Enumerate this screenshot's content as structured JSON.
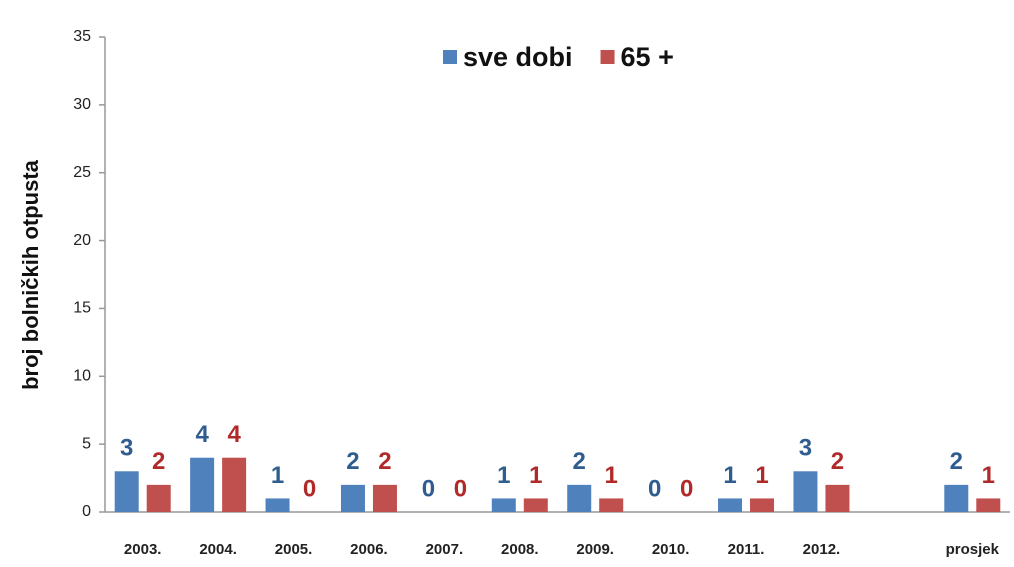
{
  "chart_data": {
    "type": "bar",
    "y_label": "broj bolničkih otpusta",
    "categories": [
      "2003.",
      "2004.",
      "2005.",
      "2006.",
      "2007.",
      "2008.",
      "2009.",
      "2010.",
      "2011.",
      "2012.",
      null,
      "prosjek"
    ],
    "series": [
      {
        "name": "sve dobi",
        "color": "#4f81bd",
        "label_color": "#2f5d8f",
        "values": [
          3,
          4,
          1,
          2,
          0,
          1,
          2,
          0,
          1,
          3,
          null,
          2
        ]
      },
      {
        "name": "65 +",
        "color": "#c0504d",
        "label_color": "#b02a2a",
        "values": [
          2,
          4,
          0,
          2,
          0,
          1,
          1,
          0,
          1,
          2,
          null,
          1
        ]
      }
    ],
    "ylim": [
      0,
      35
    ],
    "yticks": [
      0,
      5,
      10,
      15,
      20,
      25,
      30,
      35
    ],
    "grid": false,
    "legend": "top"
  }
}
